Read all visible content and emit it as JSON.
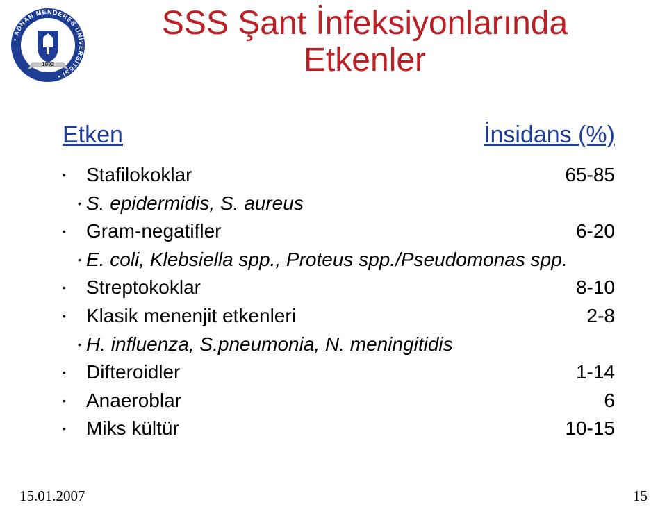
{
  "colors": {
    "title": "#ba2025",
    "header": "#1e3e96",
    "body_text": "#000000",
    "logo_ring": "#1e3e96",
    "logo_shield": "#1e3e96",
    "logo_ring_text": "#ffffff",
    "logo_banner": "#c7c7c7",
    "background": "#ffffff"
  },
  "logo": {
    "ring_text": "• ADNAN MENDERES ÜNİVERSİTESİ •",
    "banner_text": "1992"
  },
  "title": {
    "line1": "SSS Şant İnfeksiyonlarında",
    "line2": "Etkenler",
    "fontsize": 48
  },
  "table": {
    "header_left": "Etken",
    "header_right": "İnsidans (%)",
    "header_fontsize": 34,
    "row_fontsize": 28,
    "rows": [
      {
        "label": "Stafilokoklar",
        "value": "65-85",
        "italic": false,
        "indent": false
      },
      {
        "label": "S. epidermidis, S. aureus",
        "value": "",
        "italic": true,
        "indent": true
      },
      {
        "label": "Gram-negatifler",
        "value": "6-20",
        "italic": false,
        "indent": false
      },
      {
        "label": "E. coli, Klebsiella spp., Proteus spp./Pseudomonas spp.",
        "value": "",
        "italic": true,
        "indent": true
      },
      {
        "label": "Streptokoklar",
        "value": "8-10",
        "italic": false,
        "indent": false
      },
      {
        "label": "Klasik menenjit etkenleri",
        "value": "2-8",
        "italic": false,
        "indent": false
      },
      {
        "label": "H. influenza, S.pneumonia, N. meningitidis",
        "value": "",
        "italic": true,
        "indent": true
      },
      {
        "label": "Difteroidler",
        "value": "1-14",
        "italic": false,
        "indent": false
      },
      {
        "label": "Anaeroblar",
        "value": "6",
        "italic": false,
        "indent": false
      },
      {
        "label": "Miks kültür",
        "value": "10-15",
        "italic": false,
        "indent": false
      }
    ]
  },
  "footer": {
    "date": "15.01.2007",
    "page": "15"
  }
}
